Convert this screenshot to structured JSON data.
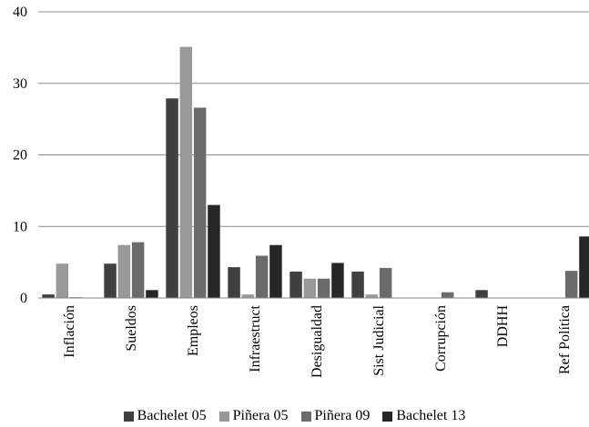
{
  "chart_data": {
    "type": "bar",
    "categories": [
      "Inflación",
      "Sueldos",
      "Empleos",
      "Infraestruct",
      "Desigualdad",
      "Sist Judicial",
      "Corrupción",
      "DDHH",
      "Ref Política"
    ],
    "series": [
      {
        "name": "Bachelet 05",
        "color": "#404040",
        "values": [
          0.5,
          4.8,
          27.9,
          4.3,
          3.7,
          3.7,
          0,
          1.1,
          0
        ]
      },
      {
        "name": "Piñera 05",
        "color": "#999999",
        "values": [
          4.8,
          7.4,
          35.1,
          0.5,
          2.7,
          0.5,
          0,
          0,
          0
        ]
      },
      {
        "name": "Piñera 09",
        "color": "#6b6b6b",
        "values": [
          0.1,
          7.8,
          26.6,
          5.9,
          2.7,
          4.2,
          0.8,
          0,
          3.8
        ]
      },
      {
        "name": "Bachelet 13",
        "color": "#262626",
        "values": [
          0,
          1.1,
          13.0,
          7.4,
          4.9,
          0,
          0,
          0,
          8.6
        ]
      }
    ],
    "yticks": [
      0,
      10,
      20,
      30,
      40
    ],
    "ylim": [
      0,
      40
    ],
    "grid": true,
    "legend": "bottom"
  }
}
